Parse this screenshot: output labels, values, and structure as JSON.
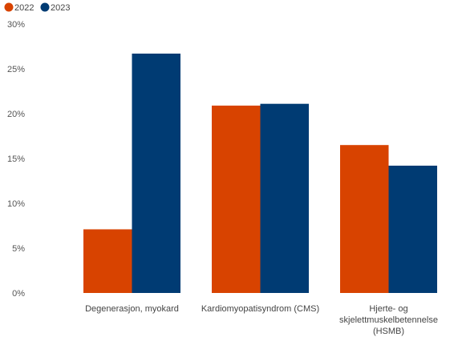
{
  "chart_data": {
    "type": "bar",
    "categories": [
      [
        "Degenerasjon, myokard"
      ],
      [
        "Kardiomyopatisyndrom (CMS)"
      ],
      [
        "Hjerte- og",
        "skjelettmuskelbetennelse",
        "(HSMB)"
      ]
    ],
    "series": [
      {
        "name": "2022",
        "color": "#d84300",
        "values": [
          7.1,
          20.9,
          16.5
        ]
      },
      {
        "name": "2023",
        "color": "#003b73",
        "values": [
          26.7,
          21.1,
          14.2
        ]
      }
    ],
    "y_ticks": [
      0,
      5,
      10,
      15,
      20,
      25,
      30
    ],
    "y_tick_labels": [
      "0%",
      "5%",
      "10%",
      "15%",
      "20%",
      "25%",
      "30%"
    ],
    "ylim": [
      0,
      30
    ],
    "legend_position": "top-left",
    "grid": false
  }
}
